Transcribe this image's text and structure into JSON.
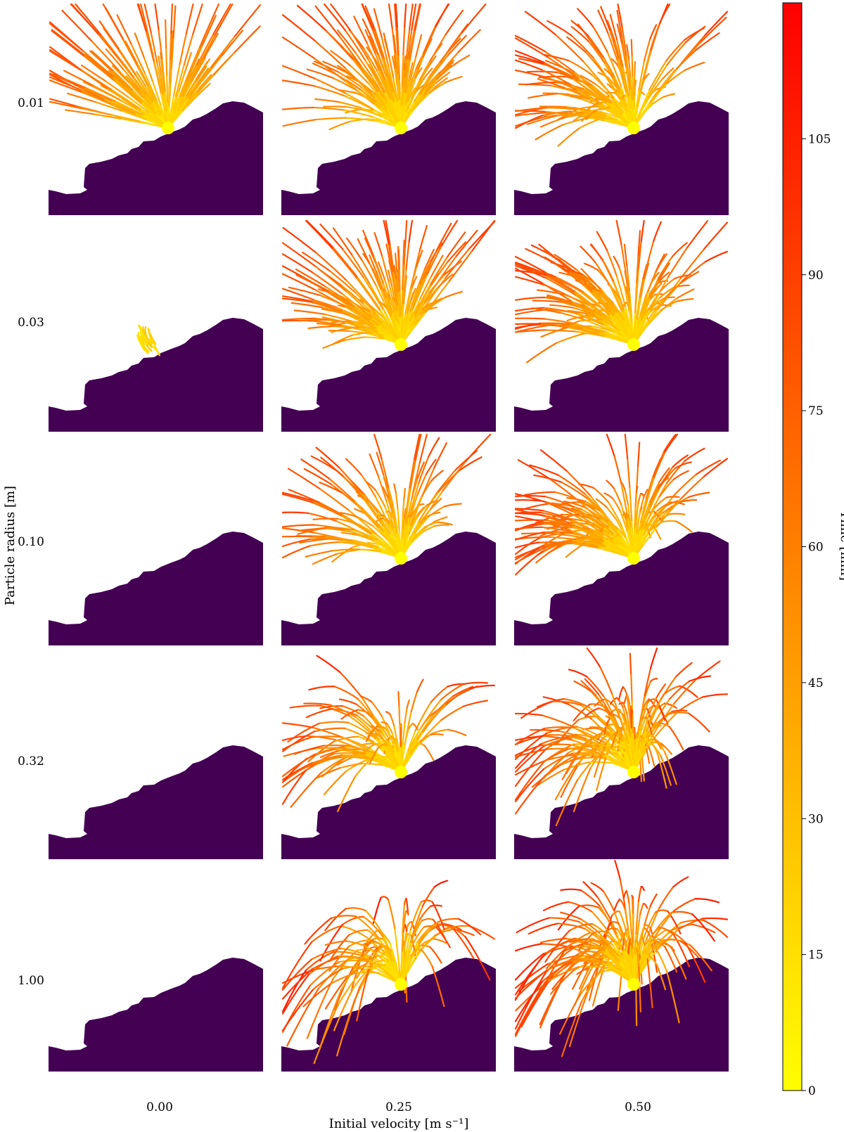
{
  "chart_data": {
    "type": "small-multiples trajectory plot",
    "description_axes": {
      "xlabel": "Initial velocity [m s⁻¹]",
      "ylabel": "Particle radius [m]"
    },
    "columns": [
      "0.00",
      "0.25",
      "0.50"
    ],
    "column_values": [
      0.0,
      0.25,
      0.5
    ],
    "rows": [
      "0.01",
      "0.03",
      "0.10",
      "0.32",
      "1.00"
    ],
    "row_values": [
      0.01,
      0.03,
      0.1,
      0.32,
      1.0
    ],
    "colorbar": {
      "label": "Time [min]",
      "ticks": [
        "0",
        "15",
        "30",
        "45",
        "60",
        "75",
        "90",
        "105"
      ],
      "tick_values": [
        0,
        15,
        30,
        45,
        60,
        75,
        90,
        105
      ],
      "range": [
        0,
        120
      ],
      "colormap": "autumn_r"
    },
    "terrain_color": "#440154",
    "trajectory_counts": [
      [
        90,
        85,
        80
      ],
      [
        20,
        95,
        90
      ],
      [
        0,
        65,
        85
      ],
      [
        0,
        60,
        90
      ],
      [
        0,
        55,
        90
      ]
    ]
  }
}
